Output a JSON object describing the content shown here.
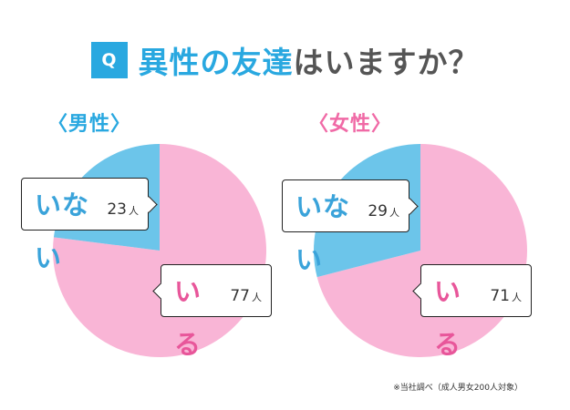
{
  "header": {
    "badge": "Q",
    "title_highlight": "異性の友達",
    "title_rest": "はいますか？"
  },
  "colors": {
    "yes": "#f9b5d6",
    "no": "#6cc5ea",
    "male_label": "#29a8e0",
    "female_label": "#f06aa6"
  },
  "chart_data": [
    {
      "type": "pie",
      "title": "〈男性〉",
      "slices": [
        {
          "label": "いる",
          "value": 77,
          "unit": "人"
        },
        {
          "label": "いない",
          "value": 23,
          "unit": "人"
        }
      ]
    },
    {
      "type": "pie",
      "title": "〈女性〉",
      "slices": [
        {
          "label": "いる",
          "value": 71,
          "unit": "人"
        },
        {
          "label": "いない",
          "value": 29,
          "unit": "人"
        }
      ]
    }
  ],
  "footnote": "※当社調べ（成人男女200人対象）"
}
